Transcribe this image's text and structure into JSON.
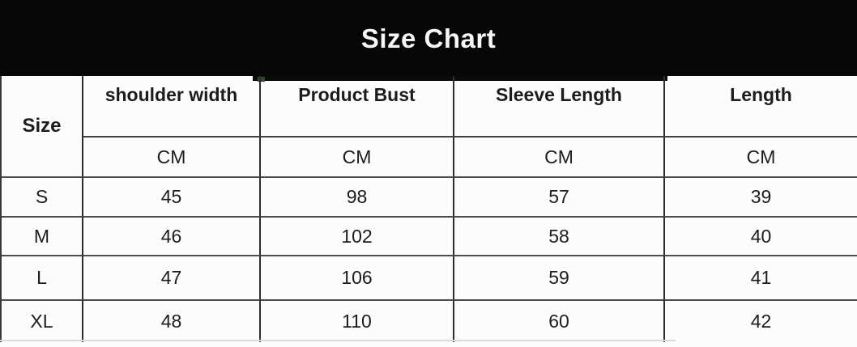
{
  "colors": {
    "banner_bg": "#070707",
    "title_color": "#f7f7f7",
    "grid_line": "#2e2e2e",
    "row_divider": "#4c4c4c",
    "text": "#1c1c1c",
    "background": "#fcfcfc"
  },
  "chart_data": {
    "type": "table",
    "title": "Size Chart",
    "size_column_header": "Size",
    "unit": "CM",
    "columns": [
      {
        "label": "shoulder width",
        "unit": "CM"
      },
      {
        "label": "Product Bust",
        "unit": "CM"
      },
      {
        "label": "Sleeve Length",
        "unit": "CM"
      },
      {
        "label": "Length",
        "unit": "CM"
      }
    ],
    "rows": [
      {
        "size": "S",
        "values": [
          "45",
          "98",
          "57",
          "39"
        ]
      },
      {
        "size": "M",
        "values": [
          "46",
          "102",
          "58",
          "40"
        ]
      },
      {
        "size": "L",
        "values": [
          "47",
          "106",
          "59",
          "41"
        ]
      },
      {
        "size": "XL",
        "values": [
          "48",
          "110",
          "60",
          "42"
        ]
      }
    ]
  }
}
